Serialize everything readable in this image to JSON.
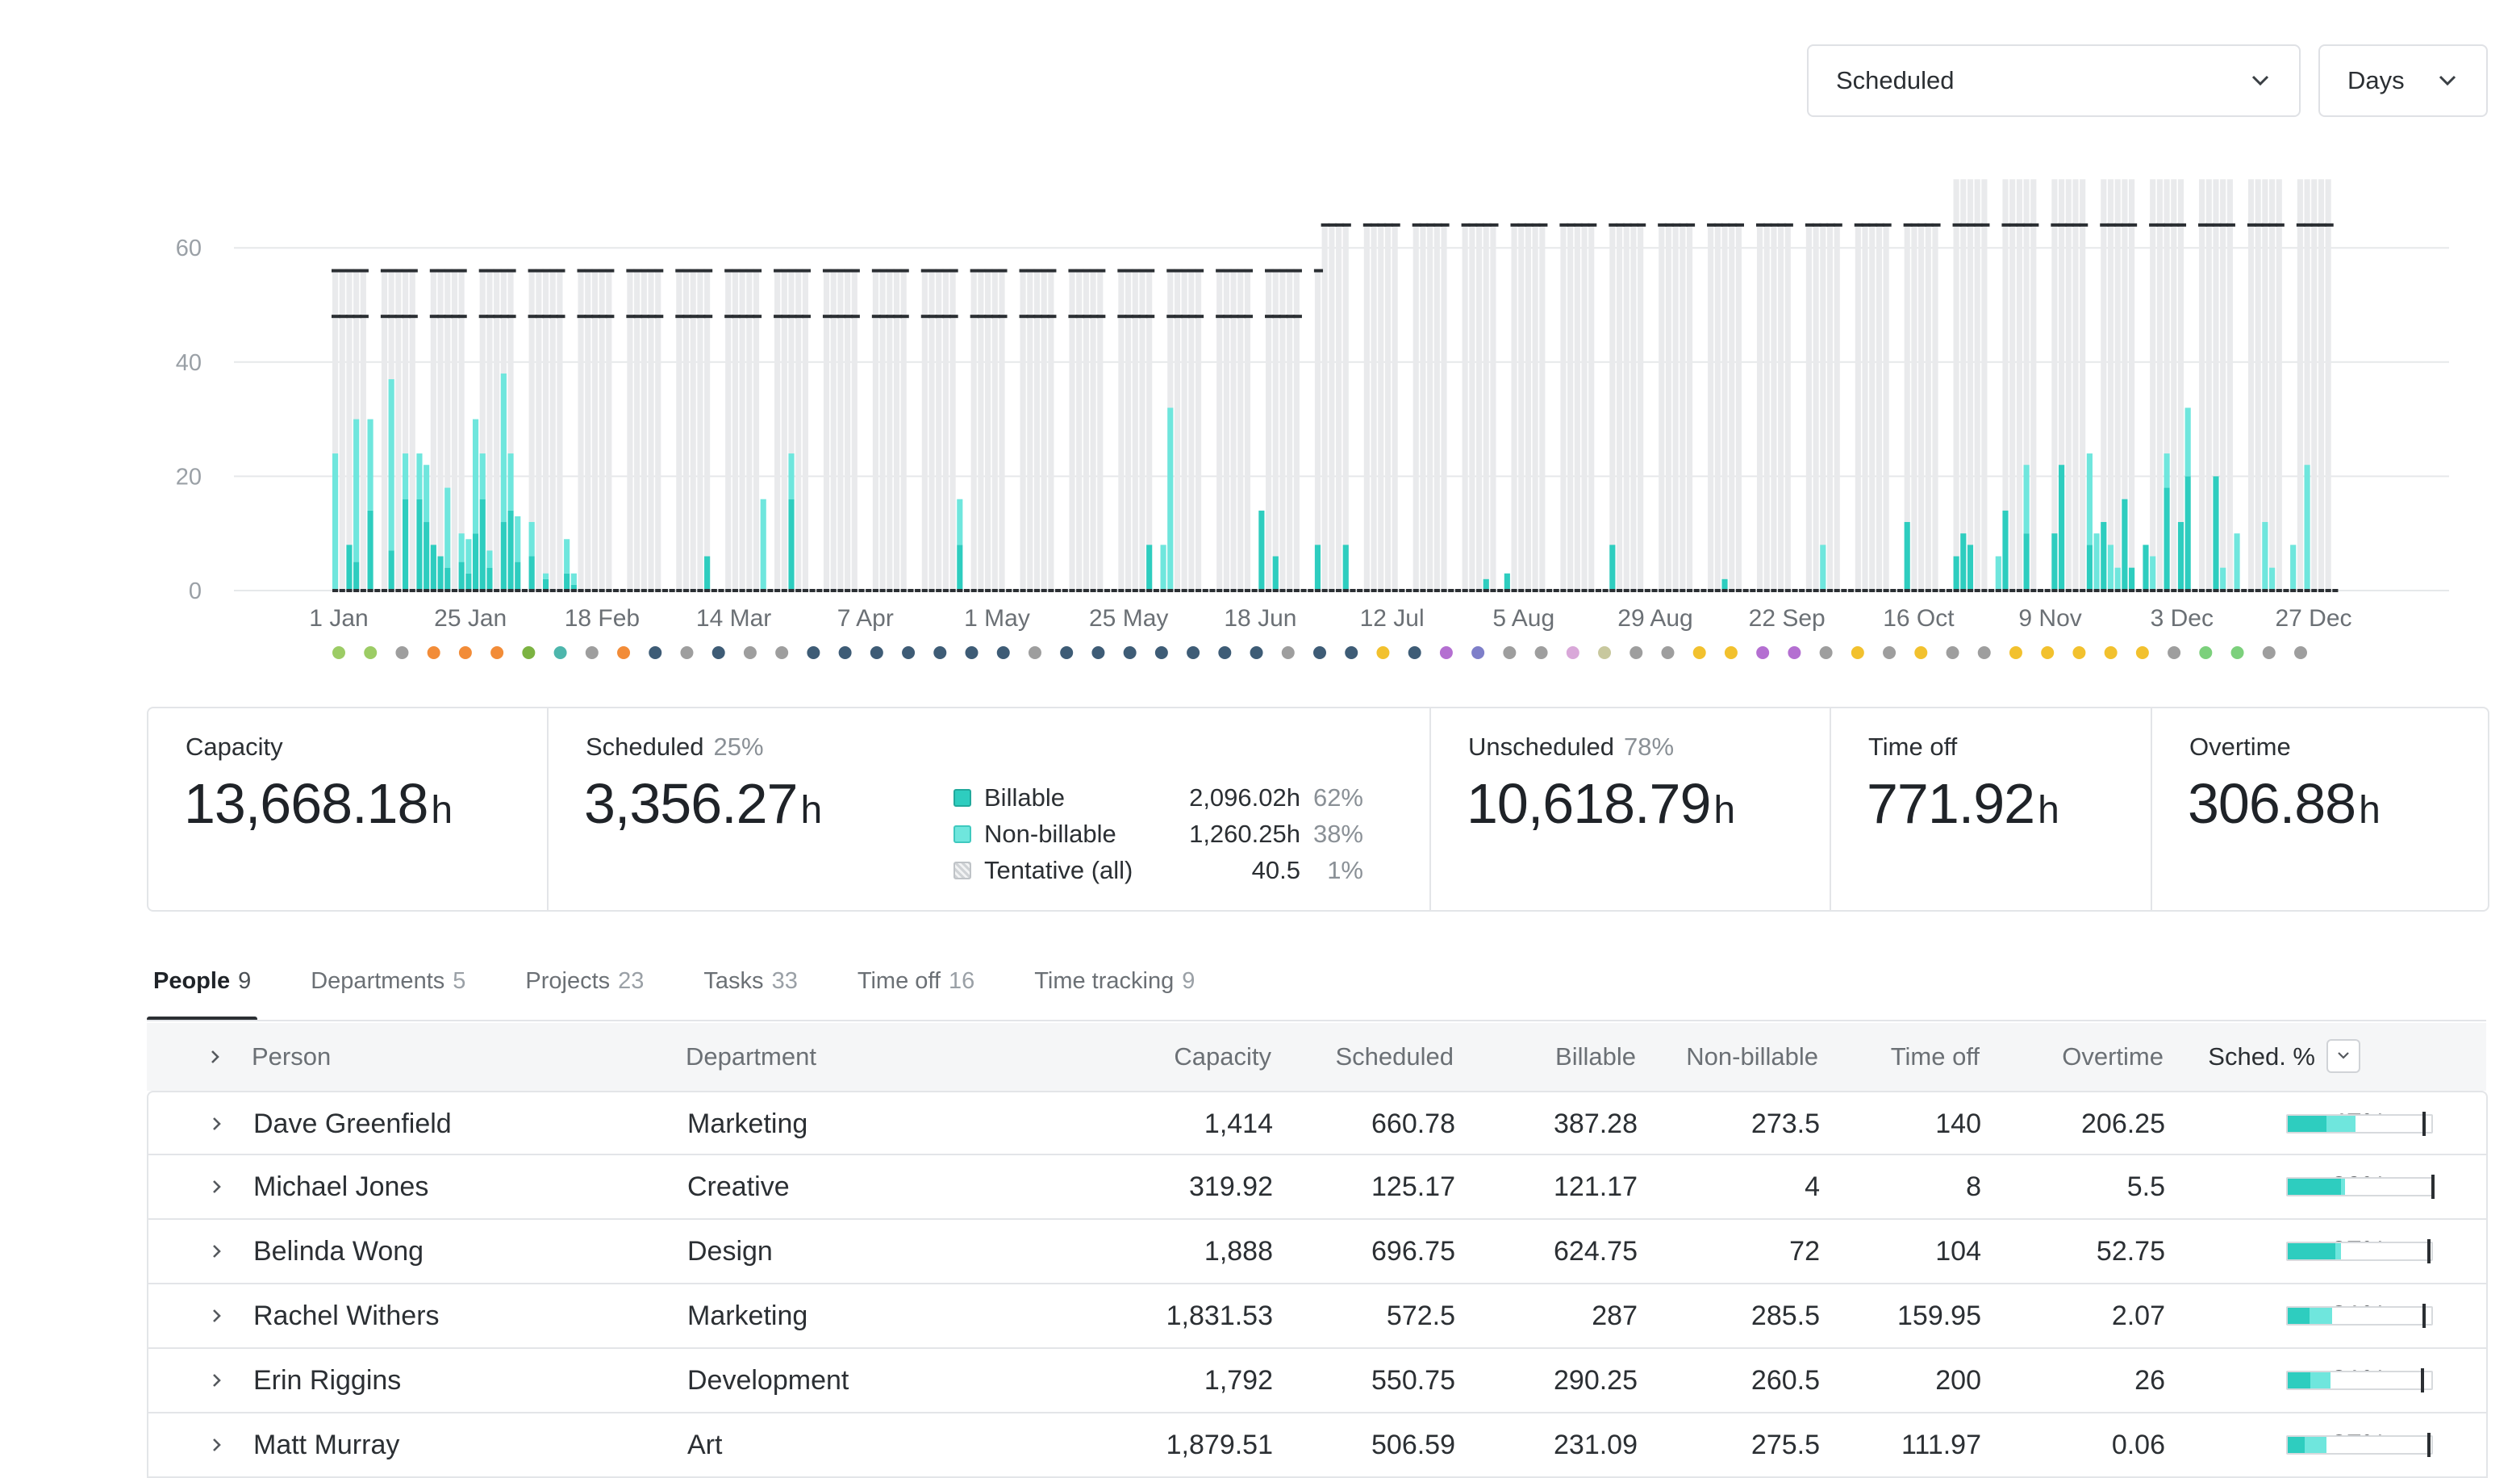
{
  "controls": {
    "view_select": "Scheduled",
    "period_select": "Days"
  },
  "colors": {
    "billable": "#2ecdbf",
    "non_billable": "#6fe6dd",
    "capacity_bar": "#e9eaec",
    "grid": "#e6e8ea",
    "capacity_marker": "#2b2f33"
  },
  "chart_data": {
    "type": "bar",
    "stacked": true,
    "ylim": [
      0,
      72
    ],
    "yticks": [
      0,
      20,
      40,
      60
    ],
    "x_tick_labels": [
      "1 Jan",
      "25 Jan",
      "18 Feb",
      "14 Mar",
      "7 Apr",
      "1 May",
      "25 May",
      "18 Jun",
      "12 Jul",
      "5 Aug",
      "29 Aug",
      "22 Sep",
      "16 Oct",
      "9 Nov",
      "3 Dec",
      "27 Dec"
    ],
    "grid": true,
    "series": [
      {
        "name": "Billable",
        "values": [
          0,
          0,
          8,
          5,
          0,
          14,
          0,
          0,
          7,
          0,
          16,
          0,
          16,
          12,
          8,
          6,
          4,
          0,
          5,
          3,
          10,
          16,
          4,
          0,
          12,
          14,
          5,
          0,
          6,
          0,
          2,
          0,
          0,
          3,
          1,
          0,
          0,
          0,
          0,
          0,
          0,
          0,
          0,
          0,
          0,
          0,
          0,
          0,
          0,
          0,
          0,
          0,
          0,
          6,
          0,
          0,
          0,
          0,
          0,
          0,
          0,
          0,
          0,
          0,
          0,
          16,
          0,
          0,
          0,
          0,
          0,
          0,
          0,
          0,
          0,
          0,
          0,
          0,
          0,
          0,
          0,
          0,
          0,
          0,
          0,
          0,
          0,
          0,
          0,
          8,
          0,
          0,
          0,
          0,
          0,
          0,
          0,
          0,
          0,
          0,
          0,
          0,
          0,
          0,
          0,
          0,
          0,
          0,
          0,
          0,
          0,
          0,
          0,
          0,
          0,
          0,
          8,
          0,
          0,
          0,
          0,
          0,
          0,
          0,
          0,
          0,
          0,
          0,
          0,
          0,
          0,
          0,
          14,
          0,
          6,
          0,
          0,
          0,
          0,
          0,
          8,
          0,
          0,
          0,
          8,
          0,
          0,
          0,
          0,
          0,
          0,
          0,
          0,
          0,
          0,
          0,
          0,
          0,
          0,
          0,
          0,
          0,
          0,
          0,
          2,
          0,
          0,
          3,
          0,
          0,
          0,
          0,
          0,
          0,
          0,
          0,
          0,
          0,
          0,
          0,
          0,
          0,
          8,
          0,
          0,
          0,
          0,
          0,
          0,
          0,
          0,
          0,
          0,
          0,
          0,
          0,
          0,
          0,
          2,
          0,
          0,
          0,
          0,
          0,
          0,
          0,
          0,
          0,
          0,
          0,
          0,
          0,
          0,
          0,
          0,
          0,
          0,
          0,
          0,
          0,
          0,
          0,
          0,
          0,
          12,
          0,
          0,
          0,
          0,
          0,
          0,
          6,
          10,
          8,
          0,
          0,
          0,
          0,
          14,
          0,
          0,
          10,
          0,
          0,
          0,
          10,
          22,
          0,
          0,
          0,
          8,
          0,
          12,
          0,
          0,
          16,
          4,
          0,
          8,
          0,
          0,
          18,
          0,
          12,
          20,
          0,
          0,
          0,
          20,
          0,
          0,
          0,
          0,
          0,
          0,
          0,
          0,
          0,
          0,
          0,
          0,
          0,
          0,
          0,
          0,
          0
        ]
      },
      {
        "name": "Non-billable",
        "values": [
          24,
          0,
          0,
          25,
          0,
          16,
          0,
          0,
          30,
          0,
          8,
          0,
          8,
          10,
          0,
          0,
          14,
          0,
          5,
          6,
          20,
          8,
          3,
          0,
          26,
          10,
          8,
          0,
          6,
          0,
          1,
          0,
          0,
          6,
          2,
          0,
          0,
          0,
          0,
          0,
          0,
          0,
          0,
          0,
          0,
          0,
          0,
          0,
          0,
          0,
          0,
          0,
          0,
          0,
          0,
          0,
          0,
          0,
          0,
          0,
          0,
          16,
          0,
          0,
          0,
          8,
          0,
          0,
          0,
          0,
          0,
          0,
          0,
          0,
          0,
          0,
          0,
          0,
          0,
          0,
          0,
          0,
          0,
          0,
          0,
          0,
          0,
          0,
          0,
          8,
          0,
          0,
          0,
          0,
          0,
          0,
          0,
          0,
          0,
          0,
          0,
          0,
          0,
          0,
          0,
          0,
          0,
          0,
          0,
          0,
          0,
          0,
          0,
          0,
          0,
          0,
          0,
          0,
          8,
          32,
          0,
          0,
          0,
          0,
          0,
          0,
          0,
          0,
          0,
          0,
          0,
          0,
          0,
          0,
          0,
          0,
          0,
          0,
          0,
          0,
          0,
          0,
          0,
          0,
          0,
          0,
          0,
          0,
          0,
          0,
          0,
          0,
          0,
          0,
          0,
          0,
          0,
          0,
          0,
          0,
          0,
          0,
          0,
          0,
          0,
          0,
          0,
          0,
          0,
          0,
          0,
          0,
          0,
          0,
          0,
          0,
          0,
          0,
          0,
          0,
          0,
          0,
          0,
          0,
          0,
          0,
          0,
          0,
          0,
          0,
          0,
          0,
          0,
          0,
          0,
          0,
          0,
          0,
          0,
          0,
          0,
          0,
          0,
          0,
          0,
          0,
          0,
          0,
          0,
          0,
          0,
          0,
          8,
          0,
          0,
          0,
          0,
          0,
          0,
          0,
          0,
          0,
          0,
          0,
          0,
          0,
          0,
          0,
          0,
          0,
          0,
          0,
          0,
          0,
          0,
          0,
          0,
          6,
          0,
          0,
          0,
          12,
          0,
          0,
          0,
          0,
          0,
          0,
          0,
          0,
          16,
          10,
          0,
          8,
          4,
          0,
          0,
          0,
          0,
          6,
          0,
          6,
          0,
          0,
          12,
          0,
          0,
          0,
          0,
          4,
          0,
          10,
          0,
          0,
          0,
          12,
          4,
          0,
          0,
          8,
          0,
          22,
          0,
          0,
          0,
          0,
          0,
          0,
          0,
          0,
          0,
          0,
          0,
          0,
          0,
          0,
          0,
          0,
          0,
          0,
          0,
          0
        ]
      }
    ]
  },
  "timeline_dots": [
    "#9ccc65",
    "#9ccc65",
    "#9e9e9e",
    "#f28c38",
    "#f28c38",
    "#f28c38",
    "#7cb342",
    "#4db6ac",
    "#9e9e9e",
    "#f28c38",
    "#3e5c76",
    "#9e9e9e",
    "#3e5c76",
    "#9e9e9e",
    "#9e9e9e",
    "#3e5c76",
    "#3e5c76",
    "#3e5c76",
    "#3e5c76",
    "#3e5c76",
    "#3e5c76",
    "#3e5c76",
    "#9e9e9e",
    "#3e5c76",
    "#3e5c76",
    "#3e5c76",
    "#3e5c76",
    "#3e5c76",
    "#3e5c76",
    "#3e5c76",
    "#9e9e9e",
    "#3e5c76",
    "#3e5c76",
    "#f2c12e",
    "#3e5c76",
    "#b46fd1",
    "#7e7fc9",
    "#9e9e9e",
    "#9e9e9e",
    "#d9a8d9",
    "#c8c89e",
    "#9e9e9e",
    "#9e9e9e",
    "#f2c12e",
    "#f2c12e",
    "#b46fd1",
    "#b46fd1",
    "#9e9e9e",
    "#f2c12e",
    "#9e9e9e",
    "#f2c12e",
    "#9e9e9e",
    "#9e9e9e",
    "#f2c12e",
    "#f2c12e",
    "#f2c12e",
    "#f2c12e",
    "#f2c12e",
    "#9e9e9e",
    "#7cd07c",
    "#7cd07c",
    "#9e9e9e",
    "#9e9e9e"
  ],
  "summary": {
    "capacity": {
      "label": "Capacity",
      "value": "13,668.18",
      "unit": "h"
    },
    "scheduled": {
      "label": "Scheduled",
      "pct": "25%",
      "value": "3,356.27",
      "unit": "h",
      "legend": [
        {
          "name": "Billable",
          "value": "2,096.02h",
          "pct": "62%",
          "color": "#2ecdbf"
        },
        {
          "name": "Non-billable",
          "value": "1,260.25h",
          "pct": "38%",
          "color": "#6fe6dd"
        },
        {
          "name": "Tentative (all)",
          "value": "40.5",
          "pct": "1%",
          "color": "#d9dbdd"
        }
      ]
    },
    "unscheduled": {
      "label": "Unscheduled",
      "pct": "78%",
      "value": "10,618.79",
      "unit": "h"
    },
    "time_off": {
      "label": "Time off",
      "value": "771.92",
      "unit": "h"
    },
    "overtime": {
      "label": "Overtime",
      "value": "306.88",
      "unit": "h"
    }
  },
  "tabs": [
    {
      "label": "People",
      "count": "9"
    },
    {
      "label": "Departments",
      "count": "5"
    },
    {
      "label": "Projects",
      "count": "23"
    },
    {
      "label": "Tasks",
      "count": "33"
    },
    {
      "label": "Time off",
      "count": "16"
    },
    {
      "label": "Time tracking",
      "count": "9"
    }
  ],
  "table": {
    "headers": {
      "person": "Person",
      "department": "Department",
      "capacity": "Capacity",
      "scheduled": "Scheduled",
      "billable": "Billable",
      "non_billable": "Non-billable",
      "time_off": "Time off",
      "overtime": "Overtime",
      "sched_pct": "Sched. %"
    },
    "rows": [
      {
        "person": "Dave Greenfield",
        "department": "Marketing",
        "capacity": "1,414",
        "scheduled": "660.78",
        "billable": "387.28",
        "non_billable": "273.5",
        "time_off": "140",
        "overtime": "206.25",
        "sched_pct": "47%",
        "bar": {
          "billable": 0.27,
          "non_billable": 0.2,
          "capacity_marker": 0.94
        }
      },
      {
        "person": "Michael Jones",
        "department": "Creative",
        "capacity": "319.92",
        "scheduled": "125.17",
        "billable": "121.17",
        "non_billable": "4",
        "time_off": "8",
        "overtime": "5.5",
        "sched_pct": "39%",
        "bar": {
          "billable": 0.37,
          "non_billable": 0.03,
          "capacity_marker": 1.0
        }
      },
      {
        "person": "Belinda Wong",
        "department": "Design",
        "capacity": "1,888",
        "scheduled": "696.75",
        "billable": "624.75",
        "non_billable": "72",
        "time_off": "104",
        "overtime": "52.75",
        "sched_pct": "37%",
        "bar": {
          "billable": 0.33,
          "non_billable": 0.04,
          "capacity_marker": 0.97
        }
      },
      {
        "person": "Rachel Withers",
        "department": "Marketing",
        "capacity": "1,831.53",
        "scheduled": "572.5",
        "billable": "287",
        "non_billable": "285.5",
        "time_off": "159.95",
        "overtime": "2.07",
        "sched_pct": "31%",
        "bar": {
          "billable": 0.15,
          "non_billable": 0.16,
          "capacity_marker": 0.94
        }
      },
      {
        "person": "Erin Riggins",
        "department": "Development",
        "capacity": "1,792",
        "scheduled": "550.75",
        "billable": "290.25",
        "non_billable": "260.5",
        "time_off": "200",
        "overtime": "26",
        "sched_pct": "31%",
        "bar": {
          "billable": 0.16,
          "non_billable": 0.14,
          "capacity_marker": 0.93
        }
      },
      {
        "person": "Matt Murray",
        "department": "Art",
        "capacity": "1,879.51",
        "scheduled": "506.59",
        "billable": "231.09",
        "non_billable": "275.5",
        "time_off": "111.97",
        "overtime": "0.06",
        "sched_pct": "27%",
        "bar": {
          "billable": 0.12,
          "non_billable": 0.15,
          "capacity_marker": 0.97
        }
      }
    ]
  }
}
